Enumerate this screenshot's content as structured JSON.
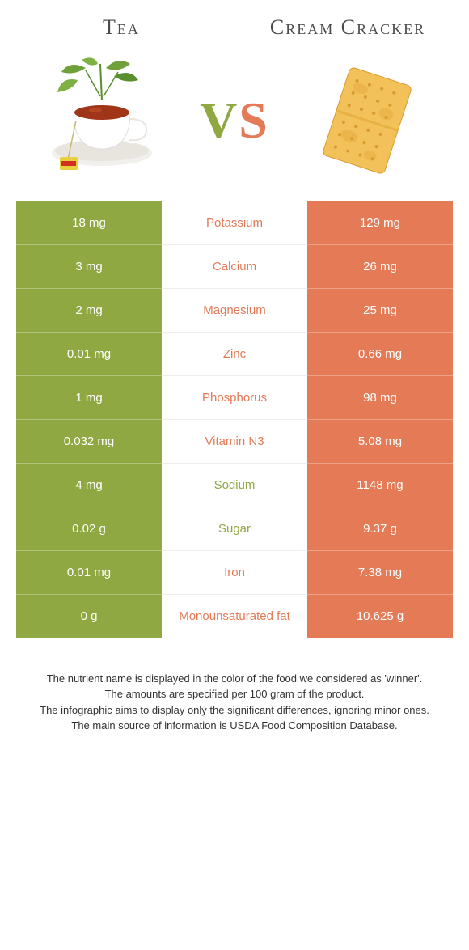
{
  "colors": {
    "left": "#8fa842",
    "right": "#e47a56",
    "text_dark": "#4a4a4a"
  },
  "header": {
    "left_title": "Tea",
    "right_title": "Cream Cracker",
    "vs_v": "V",
    "vs_s": "S"
  },
  "rows": [
    {
      "left": "18 mg",
      "label": "Potassium",
      "right": "129 mg",
      "winner": "right"
    },
    {
      "left": "3 mg",
      "label": "Calcium",
      "right": "26 mg",
      "winner": "right"
    },
    {
      "left": "2 mg",
      "label": "Magnesium",
      "right": "25 mg",
      "winner": "right"
    },
    {
      "left": "0.01 mg",
      "label": "Zinc",
      "right": "0.66 mg",
      "winner": "right"
    },
    {
      "left": "1 mg",
      "label": "Phosphorus",
      "right": "98 mg",
      "winner": "right"
    },
    {
      "left": "0.032 mg",
      "label": "Vitamin N3",
      "right": "5.08 mg",
      "winner": "right"
    },
    {
      "left": "4 mg",
      "label": "Sodium",
      "right": "1148 mg",
      "winner": "left"
    },
    {
      "left": "0.02 g",
      "label": "Sugar",
      "right": "9.37 g",
      "winner": "left"
    },
    {
      "left": "0.01 mg",
      "label": "Iron",
      "right": "7.38 mg",
      "winner": "right"
    },
    {
      "left": "0 g",
      "label": "Monounsaturated fat",
      "right": "10.625 g",
      "winner": "right"
    }
  ],
  "footer": {
    "line1": "The nutrient name is displayed in the color of the food we considered as 'winner'.",
    "line2": "The amounts are specified per 100 gram of the product.",
    "line3": "The infographic aims to display only the significant differences, ignoring minor ones.",
    "line4": "The main source of information is USDA Food Composition Database."
  }
}
